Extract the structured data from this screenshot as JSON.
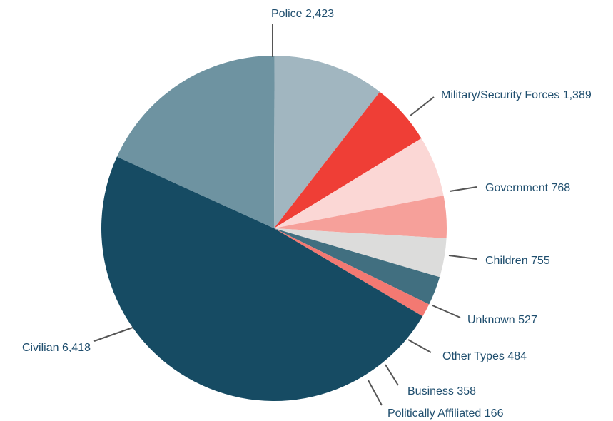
{
  "chart_data": {
    "type": "pie",
    "title": "",
    "slices": [
      {
        "name": "Police",
        "value": 2423,
        "display": "2,423",
        "color": "#6e93a1"
      },
      {
        "name": "Military/Security Forces",
        "value": 1389,
        "display": "1,389",
        "color": "#a1b6c0"
      },
      {
        "name": "Government",
        "value": 768,
        "display": "768",
        "color": "#ef3e36"
      },
      {
        "name": "Children",
        "value": 755,
        "display": "755",
        "color": "#fbd7d5"
      },
      {
        "name": "Unknown",
        "value": 527,
        "display": "527",
        "color": "#f6a09a"
      },
      {
        "name": "Other Types",
        "value": 484,
        "display": "484",
        "color": "#dcdcdb"
      },
      {
        "name": "Business",
        "value": 358,
        "display": "358",
        "color": "#416f80"
      },
      {
        "name": "Politically Affiliated",
        "value": 166,
        "display": "166",
        "color": "#f37972"
      },
      {
        "name": "Civilian",
        "value": 6418,
        "display": "6,418",
        "color": "#164b63"
      }
    ],
    "legend": "none",
    "label_color": "#1f4e6e",
    "leader_color": "#555555"
  }
}
